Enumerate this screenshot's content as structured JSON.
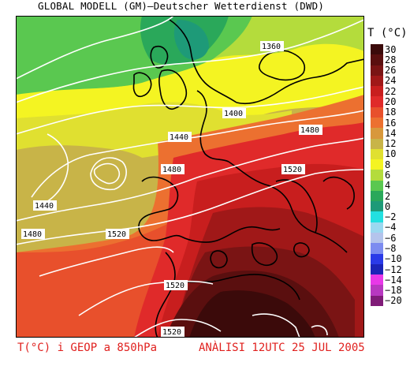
{
  "header": {
    "title": "GLOBAL MODELL (GM)–Deutscher Wetterdienst (DWD)"
  },
  "legend": {
    "title": "T (°C)",
    "entries": [
      {
        "label": "30",
        "color": "#3b0a0a"
      },
      {
        "label": "28",
        "color": "#5a0f0f"
      },
      {
        "label": "26",
        "color": "#7a1414"
      },
      {
        "label": "24",
        "color": "#a01818"
      },
      {
        "label": "22",
        "color": "#c81e1e"
      },
      {
        "label": "20",
        "color": "#e02a2a"
      },
      {
        "label": "18",
        "color": "#e8502c"
      },
      {
        "label": "16",
        "color": "#ec7030"
      },
      {
        "label": "14",
        "color": "#d8983c"
      },
      {
        "label": "12",
        "color": "#c8b448"
      },
      {
        "label": "10",
        "color": "#e0e030"
      },
      {
        "label": "8",
        "color": "#f4f422"
      },
      {
        "label": "6",
        "color": "#b4dc3c"
      },
      {
        "label": "4",
        "color": "#5ac850"
      },
      {
        "label": "2",
        "color": "#2aa85a"
      },
      {
        "label": "0",
        "color": "#1e9a78"
      },
      {
        "label": "−2",
        "color": "#22e0e0"
      },
      {
        "label": "−4",
        "color": "#9ad8f0"
      },
      {
        "label": "−6",
        "color": "#b4c4ec"
      },
      {
        "label": "−8",
        "color": "#7c8cf0"
      },
      {
        "label": "−10",
        "color": "#2a3ae8"
      },
      {
        "label": "−12",
        "color": "#1c24b8"
      },
      {
        "label": "−14",
        "color": "#e838e8"
      },
      {
        "label": "−18",
        "color": "#b838c0"
      },
      {
        "label": "−20",
        "color": "#801c78"
      }
    ]
  },
  "contours": [
    {
      "label": "1360"
    },
    {
      "label": "1400"
    },
    {
      "label": "1440"
    },
    {
      "label": "1480"
    },
    {
      "label": "1520"
    },
    {
      "label": "1480"
    },
    {
      "label": "1520"
    },
    {
      "label": "1440"
    },
    {
      "label": "1480"
    },
    {
      "label": "1520"
    },
    {
      "label": "1520"
    },
    {
      "label": "1520"
    }
  ],
  "footer": {
    "left": "T(°C) i GEOP a 850hPa",
    "right": "ANÀLISI 12UTC 25 JUL 2005"
  }
}
